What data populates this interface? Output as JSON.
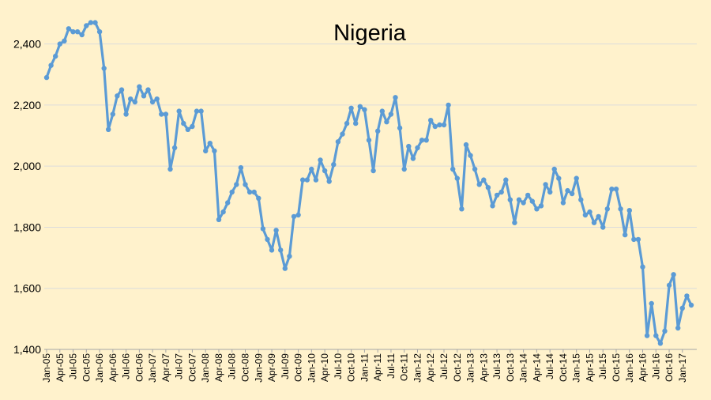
{
  "chart_data": {
    "type": "line",
    "title": "Nigeria",
    "xlabel": "",
    "ylabel": "",
    "ylim": [
      1400,
      2500
    ],
    "yticks": [
      1400,
      1600,
      1800,
      2000,
      2200,
      2400
    ],
    "ytick_labels": [
      "1,400",
      "1,600",
      "1,800",
      "2,000",
      "2,200",
      "2,400"
    ],
    "xtick_labels": [
      "Jan-05",
      "Apr-05",
      "Jul-05",
      "Oct-05",
      "Jan-06",
      "Apr-06",
      "Jul-06",
      "Oct-06",
      "Jan-07",
      "Apr-07",
      "Jul-07",
      "Oct-07",
      "Jan-08",
      "Apr-08",
      "Jul-08",
      "Oct-08",
      "Jan-09",
      "Apr-09",
      "Jul-09",
      "Oct-09",
      "Jan-10",
      "Apr-10",
      "Jul-10",
      "Oct-10",
      "Jan-11",
      "Apr-11",
      "Jul-11",
      "Oct-11",
      "Jan-12",
      "Apr-12",
      "Jul-12",
      "Oct-12",
      "Jan-13",
      "Apr-13",
      "Jul-13",
      "Oct-13",
      "Jan-14",
      "Apr-14",
      "Jul-14",
      "Oct-14",
      "Jan-15",
      "Apr-15",
      "Jul-15",
      "Oct-15",
      "Jan-16",
      "Apr-16",
      "Jul-16",
      "Oct-16",
      "Jan-17"
    ],
    "grid": true,
    "line_color": "#5B9BD5",
    "background": "#FFF2CC",
    "series": [
      {
        "values": [
          2290,
          2330,
          2360,
          2400,
          2410,
          2450,
          2440,
          2440,
          2430,
          2460,
          2470,
          2470,
          2440,
          2320,
          2120,
          2170,
          2230,
          2250,
          2170,
          2220,
          2210,
          2260,
          2230,
          2250,
          2210,
          2220,
          2170,
          2170,
          1990,
          2060,
          2180,
          2140,
          2120,
          2130,
          2180,
          2180,
          2050,
          2075,
          2050,
          1825,
          1850,
          1880,
          1915,
          1940,
          1995,
          1940,
          1915,
          1915,
          1895,
          1795,
          1760,
          1725,
          1790,
          1725,
          1665,
          1705,
          1835,
          1840,
          1955,
          1955,
          1990,
          1955,
          2020,
          1985,
          1950,
          2005,
          2080,
          2105,
          2140,
          2190,
          2140,
          2195,
          2185,
          2085,
          1985,
          2115,
          2180,
          2145,
          2170,
          2225,
          2125,
          1990,
          2065,
          2025,
          2060,
          2085,
          2085,
          2150,
          2130,
          2135,
          2135,
          2200,
          1990,
          1960,
          1860,
          2070,
          2035,
          1990,
          1940,
          1955,
          1930,
          1870,
          1905,
          1915,
          1955,
          1890,
          1815,
          1890,
          1880,
          1905,
          1885,
          1860,
          1870,
          1940,
          1915,
          1990,
          1960,
          1880,
          1920,
          1910,
          1960,
          1890,
          1840,
          1850,
          1815,
          1835,
          1800,
          1860,
          1925,
          1925,
          1860,
          1775,
          1855,
          1760,
          1760,
          1670,
          1445,
          1550,
          1445,
          1420,
          1460,
          1610,
          1645,
          1470,
          1535,
          1575,
          1545
        ]
      }
    ]
  }
}
